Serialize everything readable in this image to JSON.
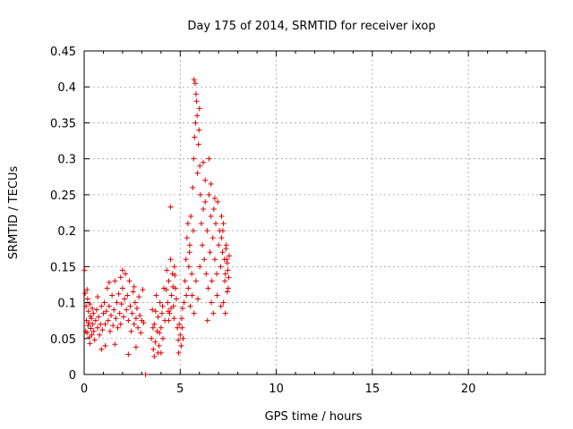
{
  "chart_data": {
    "type": "scatter",
    "title": "Day 175 of 2014, SRMTID for receiver ixop",
    "xlabel": "GPS time / hours",
    "ylabel": "SRMTID / TECUs",
    "xlim": [
      0,
      24
    ],
    "ylim": [
      0,
      0.45
    ],
    "xticks": [
      0,
      5,
      10,
      15,
      20
    ],
    "yticks": [
      0,
      0.05,
      0.1,
      0.15,
      0.2,
      0.25,
      0.3,
      0.35,
      0.4,
      0.45
    ],
    "grid": true,
    "marker": "+",
    "color": "#e00000",
    "series": [
      {
        "name": "SRMTID",
        "points": [
          [
            0.02,
            0.145
          ],
          [
            0.05,
            0.113
          ],
          [
            0.08,
            0.06
          ],
          [
            0.1,
            0.095
          ],
          [
            0.12,
            0.075
          ],
          [
            0.15,
            0.058
          ],
          [
            0.18,
            0.105
          ],
          [
            0.2,
            0.068
          ],
          [
            0.22,
            0.088
          ],
          [
            0.25,
            0.072
          ],
          [
            0.28,
            0.052
          ],
          [
            0.3,
            0.098
          ],
          [
            0.32,
            0.081
          ],
          [
            0.35,
            0.064
          ],
          [
            0.38,
            0.078
          ],
          [
            0.4,
            0.055
          ],
          [
            0.42,
            0.092
          ],
          [
            0.45,
            0.07
          ],
          [
            0.48,
            0.085
          ],
          [
            0.5,
            0.06
          ],
          [
            0.55,
            0.048
          ],
          [
            0.6,
            0.075
          ],
          [
            0.65,
            0.09
          ],
          [
            0.7,
            0.065
          ],
          [
            0.75,
            0.08
          ],
          [
            0.8,
            0.055
          ],
          [
            0.85,
            0.07
          ],
          [
            0.9,
            0.095
          ],
          [
            0.95,
            0.062
          ],
          [
            1.0,
            0.085
          ],
          [
            1.05,
            0.1
          ],
          [
            1.1,
            0.07
          ],
          [
            1.15,
            0.088
          ],
          [
            1.2,
            0.12
          ],
          [
            1.25,
            0.075
          ],
          [
            1.3,
            0.095
          ],
          [
            1.35,
            0.06
          ],
          [
            1.4,
            0.082
          ],
          [
            1.45,
            0.11
          ],
          [
            1.5,
            0.068
          ],
          [
            1.55,
            0.09
          ],
          [
            1.6,
            0.13
          ],
          [
            1.65,
            0.078
          ],
          [
            1.7,
            0.1
          ],
          [
            1.75,
            0.065
          ],
          [
            1.8,
            0.112
          ],
          [
            1.85,
            0.085
          ],
          [
            1.9,
            0.07
          ],
          [
            1.95,
            0.098
          ],
          [
            2.0,
            0.12
          ],
          [
            2.05,
            0.08
          ],
          [
            2.1,
            0.105
          ],
          [
            2.15,
            0.14
          ],
          [
            2.2,
            0.09
          ],
          [
            2.25,
            0.11
          ],
          [
            2.3,
            0.075
          ],
          [
            2.35,
            0.13
          ],
          [
            2.4,
            0.095
          ],
          [
            2.45,
            0.06
          ],
          [
            2.5,
            0.085
          ],
          [
            2.55,
            0.115
          ],
          [
            2.6,
            0.07
          ],
          [
            2.65,
            0.1
          ],
          [
            2.7,
            0.078
          ],
          [
            2.75,
            0.092
          ],
          [
            2.8,
            0.065
          ],
          [
            2.85,
            0.108
          ],
          [
            2.9,
            0.082
          ],
          [
            2.95,
            0.058
          ],
          [
            3.0,
            0.075
          ],
          [
            0.3,
            0.043
          ],
          [
            0.9,
            0.035
          ],
          [
            1.6,
            0.042
          ],
          [
            2.3,
            0.028
          ],
          [
            1.1,
            0.04
          ],
          [
            2.7,
            0.038
          ],
          [
            3.05,
            0.118
          ],
          [
            3.1,
            0.072
          ],
          [
            1.3,
            0.128
          ],
          [
            2.0,
            0.145
          ],
          [
            0.15,
            0.118
          ],
          [
            0.7,
            0.108
          ],
          [
            1.9,
            0.135
          ],
          [
            2.6,
            0.122
          ],
          [
            3.2,
            0.0
          ],
          [
            3.5,
            0.05
          ],
          [
            3.55,
            0.09
          ],
          [
            3.6,
            0.035
          ],
          [
            3.65,
            0.07
          ],
          [
            3.7,
            0.045
          ],
          [
            3.75,
            0.11
          ],
          [
            3.8,
            0.06
          ],
          [
            3.85,
            0.08
          ],
          [
            3.9,
            0.04
          ],
          [
            3.95,
            0.1
          ],
          [
            4.0,
            0.065
          ],
          [
            4.05,
            0.085
          ],
          [
            4.1,
            0.05
          ],
          [
            4.15,
            0.12
          ],
          [
            4.2,
            0.075
          ],
          [
            3.65,
            0.025
          ],
          [
            3.85,
            0.03
          ],
          [
            4.0,
            0.03
          ],
          [
            3.72,
            0.088
          ],
          [
            3.58,
            0.065
          ],
          [
            3.92,
            0.058
          ],
          [
            4.08,
            0.095
          ],
          [
            4.3,
            0.145
          ],
          [
            4.35,
            0.1
          ],
          [
            4.4,
            0.13
          ],
          [
            4.45,
            0.085
          ],
          [
            4.5,
            0.16
          ],
          [
            4.55,
            0.11
          ],
          [
            4.6,
            0.14
          ],
          [
            4.65,
            0.095
          ],
          [
            4.7,
            0.15
          ],
          [
            4.75,
            0.12
          ],
          [
            4.8,
            0.105
          ],
          [
            4.5,
            0.233
          ],
          [
            4.4,
            0.075
          ],
          [
            4.62,
            0.122
          ],
          [
            4.72,
            0.138
          ],
          [
            4.38,
            0.088
          ],
          [
            4.28,
            0.118
          ],
          [
            4.52,
            0.092
          ],
          [
            4.68,
            0.078
          ],
          [
            4.85,
            0.065
          ],
          [
            4.9,
            0.048
          ],
          [
            4.95,
            0.07
          ],
          [
            5.0,
            0.055
          ],
          [
            5.05,
            0.04
          ],
          [
            5.1,
            0.065
          ],
          [
            5.15,
            0.05
          ],
          [
            4.92,
            0.03
          ],
          [
            5.08,
            0.078
          ],
          [
            5.12,
            0.092
          ],
          [
            5.2,
            0.1
          ],
          [
            5.25,
            0.13
          ],
          [
            5.3,
            0.16
          ],
          [
            5.35,
            0.19
          ],
          [
            5.4,
            0.21
          ],
          [
            5.45,
            0.15
          ],
          [
            5.5,
            0.18
          ],
          [
            5.55,
            0.22
          ],
          [
            5.6,
            0.14
          ],
          [
            5.65,
            0.26
          ],
          [
            5.7,
            0.3
          ],
          [
            5.72,
            0.41
          ],
          [
            5.75,
            0.33
          ],
          [
            5.8,
            0.35
          ],
          [
            5.85,
            0.38
          ],
          [
            5.9,
            0.28
          ],
          [
            5.95,
            0.32
          ],
          [
            6.0,
            0.37
          ],
          [
            6.05,
            0.25
          ],
          [
            5.78,
            0.405
          ],
          [
            5.88,
            0.36
          ],
          [
            5.98,
            0.34
          ],
          [
            6.02,
            0.29
          ],
          [
            5.82,
            0.39
          ],
          [
            5.42,
            0.12
          ],
          [
            5.52,
            0.095
          ],
          [
            5.62,
            0.11
          ],
          [
            5.72,
            0.085
          ],
          [
            5.82,
            0.13
          ],
          [
            5.92,
            0.105
          ],
          [
            6.02,
            0.15
          ],
          [
            5.32,
            0.11
          ],
          [
            5.48,
            0.17
          ],
          [
            5.68,
            0.2
          ],
          [
            6.1,
            0.21
          ],
          [
            6.15,
            0.18
          ],
          [
            6.2,
            0.23
          ],
          [
            6.25,
            0.16
          ],
          [
            6.3,
            0.27
          ],
          [
            6.35,
            0.14
          ],
          [
            6.4,
            0.2
          ],
          [
            6.45,
            0.12
          ],
          [
            6.5,
            0.25
          ],
          [
            6.55,
            0.17
          ],
          [
            6.6,
            0.22
          ],
          [
            6.65,
            0.13
          ],
          [
            6.7,
            0.19
          ],
          [
            6.75,
            0.23
          ],
          [
            6.8,
            0.16
          ],
          [
            6.85,
            0.21
          ],
          [
            6.9,
            0.14
          ],
          [
            6.95,
            0.24
          ],
          [
            7.0,
            0.18
          ],
          [
            7.05,
            0.2
          ],
          [
            6.2,
            0.295
          ],
          [
            6.3,
            0.24
          ],
          [
            6.5,
            0.3
          ],
          [
            6.6,
            0.265
          ],
          [
            6.8,
            0.245
          ],
          [
            6.42,
            0.075
          ],
          [
            6.62,
            0.1
          ],
          [
            6.72,
            0.085
          ],
          [
            6.92,
            0.11
          ],
          [
            7.12,
            0.095
          ],
          [
            7.1,
            0.15
          ],
          [
            7.15,
            0.19
          ],
          [
            7.2,
            0.17
          ],
          [
            7.25,
            0.21
          ],
          [
            7.3,
            0.16
          ],
          [
            7.35,
            0.14
          ],
          [
            7.4,
            0.18
          ],
          [
            7.45,
            0.155
          ],
          [
            7.5,
            0.12
          ],
          [
            7.55,
            0.165
          ],
          [
            7.25,
            0.1
          ],
          [
            7.35,
            0.085
          ],
          [
            7.45,
            0.115
          ],
          [
            7.52,
            0.135
          ],
          [
            7.38,
            0.175
          ],
          [
            7.48,
            0.145
          ],
          [
            7.22,
            0.2
          ],
          [
            7.32,
            0.13
          ],
          [
            7.42,
            0.16
          ],
          [
            7.15,
            0.22
          ]
        ]
      }
    ]
  }
}
